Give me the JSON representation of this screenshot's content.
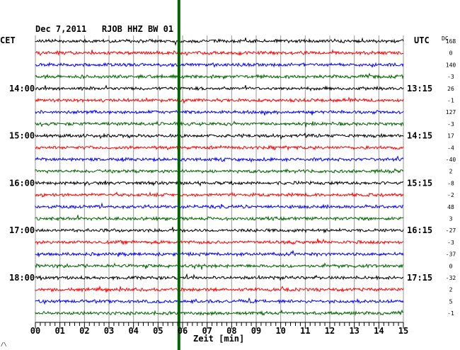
{
  "chart_data": {
    "type": "line",
    "title": "Dec 7,2011   RJOB HHZ BW 01",
    "left_label": "CET",
    "right_label": "UTC",
    "dc_label": "DC",
    "xlabel": "Zeit [min]",
    "xlim": [
      0,
      15
    ],
    "x_ticks": [
      "00",
      "01",
      "02",
      "03",
      "04",
      "05",
      "06",
      "07",
      "08",
      "09",
      "10",
      "11",
      "12",
      "13",
      "14",
      "15"
    ],
    "trace_colors": [
      "#000000",
      "#ff0000",
      "#0000ff",
      "#006400"
    ],
    "left_time_labels": [
      {
        "trace": 4,
        "label": "14:00"
      },
      {
        "trace": 8,
        "label": "15:00"
      },
      {
        "trace": 12,
        "label": "16:00"
      },
      {
        "trace": 16,
        "label": "17:00"
      },
      {
        "trace": 20,
        "label": "18:00"
      }
    ],
    "right_time_labels": [
      {
        "trace": 4,
        "label": "13:15"
      },
      {
        "trace": 8,
        "label": "14:15"
      },
      {
        "trace": 12,
        "label": "15:15"
      },
      {
        "trace": 16,
        "label": "16:15"
      },
      {
        "trace": 20,
        "label": "17:15"
      }
    ],
    "dc_offsets": [
      "168",
      "0",
      "140",
      "-3",
      "26",
      "-1",
      "127",
      "-3",
      "17",
      "-4",
      "-40",
      "2",
      "-8",
      "-2",
      "48",
      "3",
      "-27",
      "-3",
      "-37",
      "0",
      "-32",
      "2",
      "5",
      "-1"
    ],
    "event_marker": {
      "minute": 5.85,
      "color": "#006400"
    },
    "series_count": 24
  }
}
